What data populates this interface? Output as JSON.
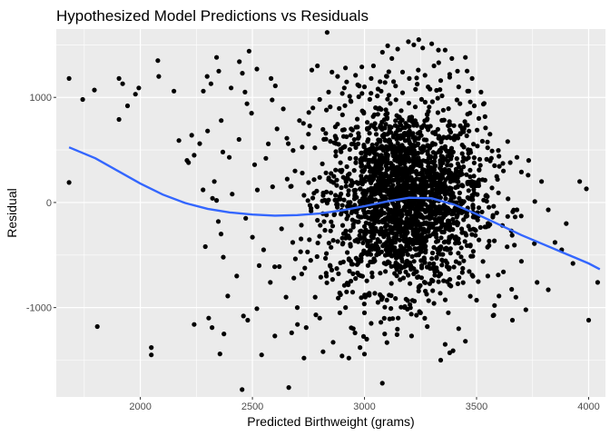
{
  "chart_data": {
    "type": "scatter",
    "title": "Hypothesized Model Predictions vs Residuals",
    "xlabel": "Predicted Birthweight (grams)",
    "ylabel": "Residual",
    "xlim": [
      1625,
      4075
    ],
    "ylim": [
      -1850,
      1650
    ],
    "x_ticks": [
      2000,
      2500,
      3000,
      3500,
      4000
    ],
    "y_ticks": [
      -1000,
      0,
      1000
    ],
    "x_tick_labels": [
      "2000",
      "2500",
      "3000",
      "3500",
      "4000"
    ],
    "y_tick_labels": [
      "-1000",
      "0",
      "1000"
    ],
    "panel_background": "#ebebeb",
    "grid": true,
    "grid_color": "#ffffff",
    "point_color": "#000000",
    "smooth_color": "#3366ff",
    "points": [
      [
        1682,
        1180
      ],
      [
        1682,
        190
      ],
      [
        1743,
        980
      ],
      [
        1795,
        1070
      ],
      [
        1808,
        -1180
      ],
      [
        1905,
        1180
      ],
      [
        1921,
        1130
      ],
      [
        1905,
        790
      ],
      [
        1943,
        920
      ],
      [
        1978,
        1030
      ],
      [
        1993,
        1090
      ],
      [
        2049,
        -1380
      ],
      [
        2049,
        -1450
      ],
      [
        2078,
        1350
      ],
      [
        2082,
        1200
      ],
      [
        2150,
        1060
      ],
      [
        2172,
        590
      ],
      [
        2208,
        400
      ],
      [
        2215,
        380
      ],
      [
        2229,
        640
      ],
      [
        2240,
        -1160
      ],
      [
        2281,
        1060
      ],
      [
        2298,
        1200
      ],
      [
        2305,
        -1100
      ],
      [
        2315,
        1130
      ],
      [
        2322,
        40
      ],
      [
        2340,
        1380
      ],
      [
        2350,
        1250
      ],
      [
        2355,
        -1440
      ],
      [
        2361,
        780
      ],
      [
        2368,
        480
      ],
      [
        2373,
        -1250
      ],
      [
        2397,
        430
      ],
      [
        2405,
        1090
      ],
      [
        2442,
        1340
      ],
      [
        2454,
        -1780
      ],
      [
        2455,
        1230
      ],
      [
        2467,
        1050
      ],
      [
        2476,
        940
      ],
      [
        2479,
        -1120
      ],
      [
        2485,
        1440
      ],
      [
        2496,
        850
      ],
      [
        2520,
        1270
      ],
      [
        2541,
        -1450
      ],
      [
        2583,
        1180
      ],
      [
        2602,
        1110
      ],
      [
        2638,
        890
      ],
      [
        2662,
        -1760
      ],
      [
        2675,
        -1240
      ],
      [
        2701,
        -1160
      ],
      [
        2730,
        -1480
      ],
      [
        2765,
        1260
      ],
      [
        2790,
        1300
      ],
      [
        2815,
        -1420
      ],
      [
        2830,
        880
      ],
      [
        2855,
        1240
      ],
      [
        2880,
        1200
      ],
      [
        2900,
        -1460
      ],
      [
        2915,
        1280
      ],
      [
        2930,
        -1480
      ],
      [
        2960,
        1210
      ],
      [
        2988,
        1290
      ],
      [
        3010,
        -1300
      ],
      [
        3040,
        1300
      ],
      [
        3080,
        1430
      ],
      [
        3122,
        1370
      ],
      [
        3148,
        1460
      ],
      [
        3196,
        1530
      ],
      [
        3220,
        1500
      ],
      [
        3242,
        1550
      ],
      [
        3260,
        1470
      ],
      [
        3300,
        1510
      ],
      [
        3330,
        1450
      ],
      [
        3360,
        1450
      ],
      [
        3340,
        -1500
      ],
      [
        3390,
        1370
      ],
      [
        3395,
        -1410
      ],
      [
        3415,
        1250
      ],
      [
        3450,
        1380
      ],
      [
        3480,
        1180
      ],
      [
        3520,
        1050
      ],
      [
        3540,
        710
      ],
      [
        3560,
        650
      ],
      [
        3580,
        350
      ],
      [
        3600,
        440
      ],
      [
        3620,
        300
      ],
      [
        3650,
        380
      ],
      [
        3680,
        430
      ],
      [
        3700,
        290
      ],
      [
        3730,
        260
      ],
      [
        3760,
        10
      ],
      [
        3790,
        200
      ],
      [
        3820,
        -70
      ],
      [
        3850,
        -380
      ],
      [
        3880,
        -450
      ],
      [
        3900,
        -200
      ],
      [
        3930,
        -580
      ],
      [
        3960,
        200
      ],
      [
        3990,
        130
      ],
      [
        4000,
        -1120
      ],
      [
        4040,
        -760
      ],
      [
        3660,
        -1120
      ],
      [
        3600,
        -890
      ],
      [
        3550,
        -700
      ],
      [
        3500,
        -930
      ],
      [
        3450,
        -1320
      ],
      [
        3420,
        -1200
      ],
      [
        3380,
        -1430
      ],
      [
        3580,
        -980
      ],
      [
        3700,
        -560
      ],
      [
        3770,
        -760
      ],
      [
        3820,
        -830
      ],
      [
        3720,
        -1020
      ],
      [
        3620,
        -660
      ],
      [
        2320,
        -1190
      ],
      [
        2370,
        -520
      ],
      [
        2390,
        -890
      ],
      [
        2430,
        -700
      ],
      [
        2460,
        -1080
      ],
      [
        2500,
        -330
      ],
      [
        2520,
        -1010
      ],
      [
        2550,
        -450
      ],
      [
        2580,
        -760
      ],
      [
        2600,
        -1270
      ],
      [
        2620,
        -610
      ],
      [
        2650,
        -900
      ],
      [
        2680,
        -380
      ],
      [
        2700,
        -1000
      ],
      [
        2720,
        -680
      ],
      [
        2740,
        -1190
      ],
      [
        2760,
        -550
      ],
      [
        2780,
        -900
      ],
      [
        2800,
        -1100
      ],
      [
        2830,
        -700
      ],
      [
        2860,
        -1330
      ],
      [
        2890,
        -1050
      ],
      [
        2920,
        -850
      ],
      [
        2950,
        -1200
      ],
      [
        2980,
        -1380
      ],
      [
        3000,
        -1050
      ],
      [
        3030,
        -1150
      ],
      [
        3060,
        -950
      ],
      [
        3090,
        -1250
      ],
      [
        3110,
        -880
      ],
      [
        3150,
        -1100
      ],
      [
        3180,
        -990
      ],
      [
        3210,
        -1270
      ],
      [
        3250,
        -1050
      ],
      [
        3280,
        -1180
      ],
      [
        3310,
        -960
      ],
      [
        3360,
        -1350
      ],
      [
        2330,
        200
      ],
      [
        2360,
        -300
      ],
      [
        2410,
        80
      ],
      [
        2440,
        600
      ],
      [
        2470,
        -150
      ],
      [
        2510,
        360
      ],
      [
        2530,
        -600
      ],
      [
        2560,
        420
      ],
      [
        2590,
        150
      ],
      [
        2610,
        700
      ],
      [
        2630,
        -250
      ],
      [
        2660,
        560
      ],
      [
        2690,
        300
      ],
      [
        2710,
        780
      ],
      [
        2750,
        650
      ],
      [
        2770,
        900
      ],
      [
        2800,
        980
      ],
      [
        2840,
        1050
      ],
      [
        2870,
        720
      ],
      [
        2910,
        1090
      ],
      [
        2940,
        960
      ],
      [
        2970,
        1120
      ],
      [
        3000,
        1100
      ],
      [
        3030,
        1180
      ],
      [
        3060,
        1080
      ],
      [
        3100,
        1200
      ],
      [
        3130,
        1150
      ],
      [
        3170,
        1240
      ],
      [
        3200,
        1180
      ],
      [
        3240,
        1260
      ],
      [
        3270,
        1210
      ],
      [
        3310,
        1300
      ],
      [
        3340,
        1160
      ],
      [
        3380,
        1220
      ],
      [
        3420,
        1100
      ],
      [
        3460,
        1060
      ],
      [
        3490,
        920
      ],
      [
        3510,
        800
      ],
      [
        2240,
        450
      ],
      [
        2265,
        560
      ],
      [
        2280,
        120
      ],
      [
        2290,
        -420
      ],
      [
        2300,
        680
      ],
      [
        2340,
        20
      ],
      [
        2348,
        -180
      ]
    ],
    "cloud": {
      "cx": 3180,
      "cy": 50,
      "sx": 175,
      "sy": 440,
      "n": 2200
    },
    "smooth": [
      [
        1682,
        525
      ],
      [
        1800,
        420
      ],
      [
        1900,
        300
      ],
      [
        2000,
        180
      ],
      [
        2100,
        75
      ],
      [
        2200,
        -5
      ],
      [
        2300,
        -60
      ],
      [
        2400,
        -95
      ],
      [
        2500,
        -115
      ],
      [
        2600,
        -125
      ],
      [
        2700,
        -120
      ],
      [
        2800,
        -105
      ],
      [
        2900,
        -75
      ],
      [
        3000,
        -35
      ],
      [
        3100,
        10
      ],
      [
        3200,
        45
      ],
      [
        3300,
        40
      ],
      [
        3400,
        -20
      ],
      [
        3500,
        -110
      ],
      [
        3600,
        -210
      ],
      [
        3700,
        -310
      ],
      [
        3800,
        -400
      ],
      [
        3900,
        -490
      ],
      [
        4000,
        -580
      ],
      [
        4050,
        -635
      ]
    ]
  }
}
